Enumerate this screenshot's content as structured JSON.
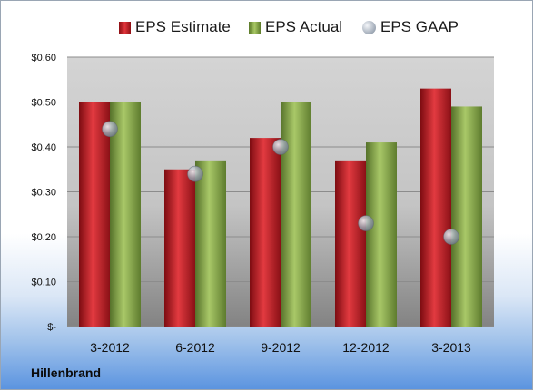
{
  "chart_data": {
    "type": "bar",
    "categories": [
      "3-2012",
      "6-2012",
      "9-2012",
      "12-2012",
      "3-2013"
    ],
    "series": [
      {
        "name": "EPS Estimate",
        "values": [
          0.5,
          0.35,
          0.42,
          0.37,
          0.53
        ],
        "color": "#c8252b"
      },
      {
        "name": "EPS Actual",
        "values": [
          0.5,
          0.37,
          0.5,
          0.41,
          0.49
        ],
        "color": "#8aab47"
      },
      {
        "name": "EPS GAAP",
        "values": [
          0.44,
          0.34,
          0.4,
          0.23,
          0.2
        ],
        "color": "#a4adb8",
        "marker": "circle"
      }
    ],
    "ylim": [
      0,
      0.6
    ],
    "yticks": [
      0,
      0.1,
      0.2,
      0.3,
      0.4,
      0.5,
      0.6
    ],
    "ytick_labels": [
      "$-",
      "$0.10",
      "$0.20",
      "$0.30",
      "$0.40",
      "$0.50",
      "$0.60"
    ],
    "grid": true,
    "legend_position": "top-center"
  },
  "legend": {
    "estimate_label": "EPS Estimate",
    "actual_label": "EPS Actual",
    "gaap_label": "EPS GAAP"
  },
  "company": "Hillenbrand"
}
